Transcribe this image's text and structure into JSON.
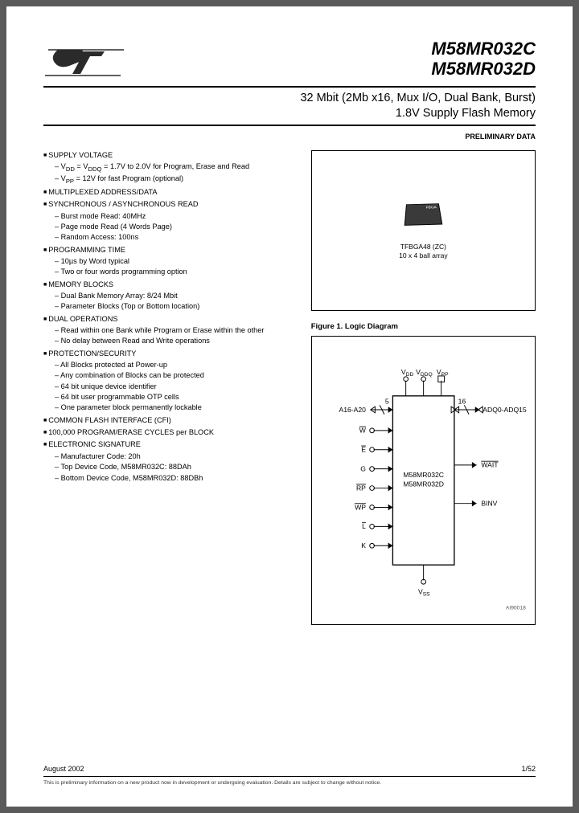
{
  "header": {
    "part1": "M58MR032C",
    "part2": "M58MR032D",
    "subtitle1": "32 Mbit (2Mb x16, Mux I/O, Dual Bank, Burst)",
    "subtitle2": "1.8V Supply Flash Memory",
    "preliminary": "PRELIMINARY DATA"
  },
  "features": [
    {
      "h": "SUPPLY VOLTAGE",
      "items": [
        "V<sub>DD</sub> = V<sub>DDQ</sub> = 1.7V to 2.0V for Program, Erase and Read",
        "V<sub>PP</sub> = 12V for fast Program (optional)"
      ]
    },
    {
      "h": "MULTIPLEXED ADDRESS/DATA",
      "items": []
    },
    {
      "h": "SYNCHRONOUS / ASYNCHRONOUS READ",
      "items": [
        "Burst mode Read: 40MHz",
        "Page mode Read (4 Words Page)",
        "Random Access: 100ns"
      ]
    },
    {
      "h": "PROGRAMMING TIME",
      "items": [
        "10µs by Word typical",
        "Two or four words programming option"
      ]
    },
    {
      "h": "MEMORY BLOCKS",
      "items": [
        "Dual Bank Memory Array: 8/24 Mbit",
        "Parameter Blocks (Top or Bottom location)"
      ]
    },
    {
      "h": "DUAL OPERATIONS",
      "items": [
        "Read within one Bank while Program or Erase within the other",
        "No delay between Read and Write operations"
      ]
    },
    {
      "h": "PROTECTION/SECURITY",
      "items": [
        "All Blocks protected at Power-up",
        "Any combination of Blocks can be protected",
        "64 bit unique device identifier",
        "64 bit user programmable OTP cells",
        "One parameter block permanently lockable"
      ]
    },
    {
      "h": "COMMON FLASH INTERFACE (CFI)",
      "items": []
    },
    {
      "h": "100,000 PROGRAM/ERASE CYCLES per BLOCK",
      "items": []
    },
    {
      "h": "ELECTRONIC SIGNATURE",
      "items": [
        "Manufacturer Code: 20h",
        "Top Device Code, M58MR032C: 88DAh",
        "Bottom Device Code, M58MR032D: 88DBh"
      ]
    }
  ],
  "package": {
    "line1": "TFBGA48 (ZC)",
    "line2": "10 x 4 ball array"
  },
  "figure": {
    "title": "Figure 1. Logic Diagram",
    "ref": "AI90018"
  },
  "diagram": {
    "chip1": "M58MR032C",
    "chip2": "M58MR032D",
    "top": {
      "vdd": "V",
      "vddq": "V",
      "vpp": "V",
      "dd": "DD",
      "ddq": "DDQ",
      "pp": "PP"
    },
    "left": {
      "addr": "A16-A20",
      "addr_n": "5",
      "pins": [
        "W",
        "E",
        "G",
        "RP",
        "WP",
        "L",
        "K"
      ]
    },
    "right": {
      "data": "ADQ0-ADQ15",
      "data_n": "16",
      "wait": "WAIT",
      "binv": "BINV"
    },
    "bottom": {
      "vss": "V",
      "ss": "SS"
    }
  },
  "footer": {
    "date": "August 2002",
    "page": "1/52",
    "disclaimer": "This is preliminary information on a new product now in development or undergoing evaluation. Details are subject to change without notice."
  }
}
